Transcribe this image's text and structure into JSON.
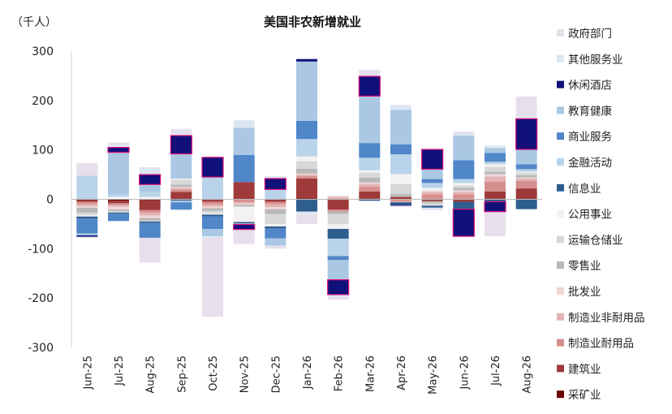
{
  "chart_data": {
    "type": "bar",
    "stacked": true,
    "title": "美国非农新增就业",
    "unit_label": "（千人）",
    "ylim": [
      -300,
      300
    ],
    "yticks": [
      300,
      200,
      100,
      0,
      -100,
      -200,
      -300
    ],
    "grid": false,
    "legend_position": "right",
    "categories": [
      "Jun-25",
      "Jul-25",
      "Aug-25",
      "Sep-25",
      "Oct-25",
      "Nov-25",
      "Dec-25",
      "Jan-26",
      "Feb-26",
      "Mar-26",
      "Apr-26",
      "May-26",
      "Jun-26",
      "Jul-26",
      "Aug-26"
    ],
    "total_highlighted": [
      false,
      true,
      true,
      true,
      true,
      true,
      true,
      true,
      true,
      true,
      false,
      true,
      true,
      true,
      true
    ],
    "series": [
      {
        "name": "采矿业",
        "color": "#6b0000",
        "values": [
          -2,
          -3,
          -2,
          0,
          -1,
          -1,
          0,
          2,
          -1,
          1,
          -1,
          -1,
          0,
          1,
          0
        ]
      },
      {
        "name": "建筑业",
        "color": "#9e3a3a",
        "values": [
          -3,
          -5,
          -20,
          15,
          -4,
          35,
          -5,
          40,
          -20,
          15,
          5,
          -3,
          -5,
          15,
          22
        ]
      },
      {
        "name": "制造业耐用品",
        "color": "#d68f8f",
        "values": [
          -5,
          -4,
          -5,
          5,
          -6,
          -5,
          -5,
          5,
          -4,
          10,
          -3,
          10,
          10,
          20,
          15
        ]
      },
      {
        "name": "制造业非耐用品",
        "color": "#e4b4b4",
        "values": [
          -4,
          -3,
          -6,
          3,
          -4,
          -3,
          -6,
          3,
          5,
          5,
          -2,
          5,
          5,
          10,
          5
        ]
      },
      {
        "name": "批发业",
        "color": "#f1d8d8",
        "values": [
          -3,
          -6,
          -5,
          2,
          -3,
          -2,
          -4,
          2,
          2,
          3,
          1,
          3,
          3,
          5,
          2
        ]
      },
      {
        "name": "零售业",
        "color": "#b8b8b8",
        "values": [
          -10,
          -3,
          -5,
          5,
          -5,
          -3,
          -10,
          10,
          -5,
          10,
          5,
          -4,
          5,
          5,
          5
        ]
      },
      {
        "name": "运输仓储业",
        "color": "#d8d8d8",
        "values": [
          -5,
          -3,
          -2,
          10,
          -5,
          -2,
          -20,
          15,
          -20,
          10,
          20,
          -5,
          5,
          10,
          5
        ]
      },
      {
        "name": "公用事业",
        "color": "#f2f2f2",
        "values": [
          -3,
          5,
          5,
          2,
          -3,
          -30,
          -5,
          10,
          -10,
          5,
          20,
          5,
          5,
          5,
          2
        ]
      },
      {
        "name": "信息业",
        "color": "#2e5e8e",
        "values": [
          -4,
          -2,
          -3,
          -3,
          -4,
          -3,
          -4,
          -25,
          -20,
          -3,
          -5,
          -4,
          -15,
          -5,
          -20
        ]
      },
      {
        "name": "金融活动",
        "color": "#b9d3ea",
        "values": [
          48,
          5,
          10,
          -3,
          45,
          -2,
          20,
          35,
          -35,
          25,
          40,
          10,
          8,
          5,
          5
        ]
      },
      {
        "name": "商业服务",
        "color": "#4f87c9",
        "values": [
          -30,
          -15,
          -30,
          -15,
          -25,
          55,
          -20,
          37,
          -8,
          30,
          20,
          8,
          38,
          18,
          10
        ]
      },
      {
        "name": "教育健康",
        "color": "#aac8e4",
        "values": [
          -4,
          85,
          15,
          50,
          -15,
          55,
          -15,
          120,
          -40,
          95,
          70,
          20,
          50,
          10,
          30
        ]
      },
      {
        "name": "休闲酒店",
        "color": "#10107a",
        "values": [
          -3,
          10,
          20,
          37,
          40,
          -10,
          22,
          5,
          -30,
          40,
          -2,
          40,
          -55,
          -20,
          62
        ]
      },
      {
        "name": "其他服务业",
        "color": "#dde7f2",
        "values": [
          -2,
          5,
          15,
          5,
          -3,
          15,
          5,
          -5,
          -5,
          5,
          10,
          -2,
          5,
          5,
          5
        ]
      },
      {
        "name": "政府部门",
        "color": "#e8dfec",
        "values": [
          25,
          5,
          -50,
          8,
          -160,
          -30,
          -6,
          -20,
          -5,
          8,
          -2,
          -3,
          3,
          -50,
          40
        ]
      }
    ]
  }
}
